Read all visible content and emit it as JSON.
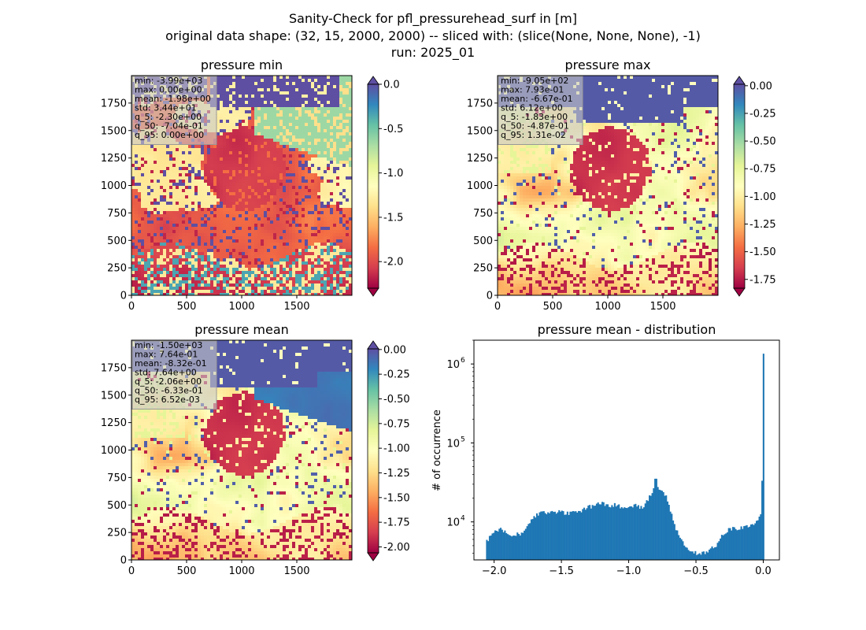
{
  "figure": {
    "title_lines": [
      "Sanity-Check for pfl_pressurehead_surf in [m]",
      "original data shape: (32, 15, 2000, 2000) -- sliced with: (slice(None, None, None), -1)",
      "run: 2025_01"
    ]
  },
  "colormap": {
    "name": "Spectral",
    "stops": [
      "#9e0142",
      "#d53e4f",
      "#f46d43",
      "#fdae61",
      "#fee08b",
      "#ffffbf",
      "#e6f598",
      "#abdda4",
      "#66c2a5",
      "#3288bd",
      "#5e4fa2"
    ]
  },
  "chart_data": [
    {
      "type": "heatmap",
      "title": "pressure min",
      "x_ticks": [
        0,
        500,
        1000,
        1500
      ],
      "y_ticks": [
        0,
        250,
        500,
        750,
        1000,
        1250,
        1500,
        1750
      ],
      "xlim": [
        0,
        2000
      ],
      "ylim": [
        0,
        2000
      ],
      "color_range": [
        -2.3,
        0.0
      ],
      "colorbar_ticks": [
        "0.0",
        "-0.5",
        "-1.0",
        "-1.5",
        "-2.0"
      ],
      "colorbar_tick_values": [
        0.0,
        -0.5,
        -1.0,
        -1.5,
        -2.0
      ],
      "colorbar_extend": "both",
      "stats": [
        "min: -3.99e+03",
        "max: 0.00e+00",
        "mean: -1.98e+00",
        "std: 3.44e+01",
        "q_5: -2.30e+00",
        "q_50: -7.04e-01",
        "q_95: 0.00e+00"
      ]
    },
    {
      "type": "heatmap",
      "title": "pressure max",
      "x_ticks": [
        0,
        500,
        1000,
        1500
      ],
      "y_ticks": [
        0,
        250,
        500,
        750,
        1000,
        1250,
        1500,
        1750
      ],
      "xlim": [
        0,
        2000
      ],
      "ylim": [
        0,
        2000
      ],
      "color_range": [
        -1.83,
        0.0131
      ],
      "colorbar_ticks": [
        "0.00",
        "-0.25",
        "-0.50",
        "-0.75",
        "-1.00",
        "-1.25",
        "-1.50",
        "-1.75"
      ],
      "colorbar_tick_values": [
        0.0,
        -0.25,
        -0.5,
        -0.75,
        -1.0,
        -1.25,
        -1.5,
        -1.75
      ],
      "colorbar_extend": "both",
      "stats": [
        "min: -9.05e+02",
        "max: 7.93e-01",
        "mean: -6.67e-01",
        "std: 6.12e+00",
        "q_5: -1.83e+00",
        "q_50: -4.87e-01",
        "q_95: 1.31e-02"
      ]
    },
    {
      "type": "heatmap",
      "title": "pressure mean",
      "x_ticks": [
        0,
        500,
        1000,
        1500
      ],
      "y_ticks": [
        0,
        250,
        500,
        750,
        1000,
        1250,
        1500,
        1750
      ],
      "xlim": [
        0,
        2000
      ],
      "ylim": [
        0,
        2000
      ],
      "color_range": [
        -2.06,
        0.00652
      ],
      "colorbar_ticks": [
        "0.00",
        "-0.25",
        "-0.50",
        "-0.75",
        "-1.00",
        "-1.25",
        "-1.50",
        "-1.75",
        "-2.00"
      ],
      "colorbar_tick_values": [
        0.0,
        -0.25,
        -0.5,
        -0.75,
        -1.0,
        -1.25,
        -1.5,
        -1.75,
        -2.0
      ],
      "colorbar_extend": "both",
      "stats": [
        "min: -1.50e+03",
        "max: 7.64e-01",
        "mean: -8.32e-01",
        "std: 7.64e+00",
        "q_5: -2.06e+00",
        "q_50: -6.33e-01",
        "q_95: 6.52e-03"
      ]
    },
    {
      "type": "bar",
      "title": "pressure mean - distribution",
      "xlabel": "",
      "ylabel": "# of occurrence",
      "yscale": "log",
      "xlim": [
        -2.15,
        0.12
      ],
      "ylim": [
        3300,
        2000000
      ],
      "x_ticks": [
        -2.0,
        -1.5,
        -1.0,
        -0.5,
        0.0
      ],
      "x_tick_labels": [
        "−2.0",
        "−1.5",
        "−1.0",
        "−0.5",
        "0.0"
      ],
      "y_ticks": [
        10000,
        100000,
        1000000
      ],
      "y_tick_labels": [
        "10",
        "10",
        "10"
      ],
      "y_tick_exponents": [
        "4",
        "5",
        "6"
      ],
      "bar_color": "#1f77b4",
      "bin_start": -2.06,
      "bin_end": 0.0065,
      "x": [
        -2.05,
        -2.0,
        -1.95,
        -1.9,
        -1.85,
        -1.8,
        -1.75,
        -1.7,
        -1.65,
        -1.6,
        -1.55,
        -1.5,
        -1.45,
        -1.4,
        -1.35,
        -1.3,
        -1.25,
        -1.2,
        -1.15,
        -1.1,
        -1.05,
        -1.0,
        -0.95,
        -0.9,
        -0.85,
        -0.82,
        -0.8,
        -0.78,
        -0.75,
        -0.72,
        -0.7,
        -0.68,
        -0.65,
        -0.6,
        -0.55,
        -0.5,
        -0.45,
        -0.4,
        -0.35,
        -0.3,
        -0.25,
        -0.2,
        -0.15,
        -0.1,
        -0.05,
        -0.02,
        -0.01,
        0.0
      ],
      "values": [
        5800,
        7500,
        8300,
        7000,
        6800,
        7200,
        9000,
        11500,
        13500,
        13000,
        13500,
        13200,
        12800,
        13200,
        14000,
        15500,
        16000,
        17500,
        16000,
        16500,
        15500,
        15000,
        16500,
        15000,
        20000,
        25000,
        37000,
        27000,
        25000,
        21000,
        15500,
        12000,
        8000,
        5500,
        4300,
        4000,
        4000,
        4400,
        5000,
        7000,
        8200,
        8300,
        8600,
        9000,
        10000,
        12000,
        22000,
        1350000
      ]
    }
  ]
}
